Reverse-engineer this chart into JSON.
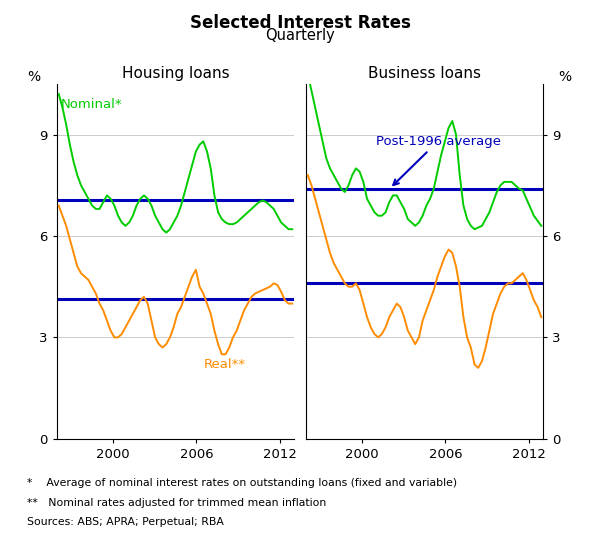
{
  "title": "Selected Interest Rates",
  "subtitle": "Quarterly",
  "left_panel_title": "Housing loans",
  "right_panel_title": "Business loans",
  "ylim": [
    0,
    10.5
  ],
  "yticks": [
    0,
    3,
    6,
    9
  ],
  "ylabel_left": "%",
  "ylabel_right": "%",
  "housing_nominal_avg": 7.05,
  "housing_real_avg": 4.15,
  "business_nominal_avg": 7.4,
  "business_real_avg": 4.6,
  "green_color": "#00CC00",
  "orange_color": "#FF8C00",
  "blue_color": "#0000BB",
  "footnote1": "*    Average of nominal interest rates on outstanding loans (fixed and variable)",
  "footnote2": "**   Nominal rates adjusted for trimmed mean inflation",
  "footnote3": "Sources: ABS; APRA; Perpetual; RBA",
  "housing_nominal": [
    10.2,
    9.8,
    9.3,
    8.7,
    8.2,
    7.8,
    7.5,
    7.3,
    7.1,
    6.9,
    6.8,
    6.8,
    7.0,
    7.2,
    7.1,
    6.9,
    6.6,
    6.4,
    6.3,
    6.4,
    6.6,
    6.9,
    7.1,
    7.2,
    7.1,
    6.9,
    6.6,
    6.4,
    6.2,
    6.1,
    6.2,
    6.4,
    6.6,
    6.9,
    7.3,
    7.7,
    8.1,
    8.5,
    8.7,
    8.8,
    8.5,
    8.0,
    7.2,
    6.7,
    6.5,
    6.4,
    6.35,
    6.35,
    6.4,
    6.5,
    6.6,
    6.7,
    6.8,
    6.9,
    7.0,
    7.05,
    7.0,
    6.9,
    6.8,
    6.6,
    6.4,
    6.3,
    6.2,
    6.2
  ],
  "housing_real": [
    6.9,
    6.6,
    6.3,
    5.9,
    5.5,
    5.1,
    4.9,
    4.8,
    4.7,
    4.5,
    4.3,
    4.0,
    3.8,
    3.5,
    3.2,
    3.0,
    3.0,
    3.1,
    3.3,
    3.5,
    3.7,
    3.9,
    4.1,
    4.2,
    4.0,
    3.5,
    3.0,
    2.8,
    2.7,
    2.8,
    3.0,
    3.3,
    3.7,
    3.9,
    4.2,
    4.5,
    4.8,
    5.0,
    4.5,
    4.3,
    4.0,
    3.7,
    3.2,
    2.8,
    2.5,
    2.5,
    2.7,
    3.0,
    3.2,
    3.5,
    3.8,
    4.0,
    4.2,
    4.3,
    4.35,
    4.4,
    4.45,
    4.5,
    4.6,
    4.55,
    4.35,
    4.1,
    4.0,
    4.0
  ],
  "business_nominal": [
    10.8,
    10.3,
    9.8,
    9.3,
    8.8,
    8.3,
    8.0,
    7.8,
    7.6,
    7.4,
    7.3,
    7.5,
    7.8,
    8.0,
    7.9,
    7.6,
    7.1,
    6.9,
    6.7,
    6.6,
    6.6,
    6.7,
    7.0,
    7.2,
    7.2,
    7.0,
    6.8,
    6.5,
    6.4,
    6.3,
    6.4,
    6.6,
    6.9,
    7.1,
    7.4,
    7.9,
    8.4,
    8.8,
    9.2,
    9.4,
    9.0,
    7.8,
    6.9,
    6.5,
    6.3,
    6.2,
    6.25,
    6.3,
    6.5,
    6.7,
    7.0,
    7.3,
    7.5,
    7.6,
    7.6,
    7.6,
    7.5,
    7.4,
    7.35,
    7.1,
    6.85,
    6.6,
    6.45,
    6.3
  ],
  "business_real": [
    7.8,
    7.5,
    7.1,
    6.7,
    6.3,
    5.9,
    5.5,
    5.2,
    5.0,
    4.8,
    4.6,
    4.5,
    4.5,
    4.6,
    4.4,
    4.0,
    3.6,
    3.3,
    3.1,
    3.0,
    3.1,
    3.3,
    3.6,
    3.8,
    4.0,
    3.9,
    3.6,
    3.2,
    3.0,
    2.8,
    3.0,
    3.5,
    3.8,
    4.1,
    4.4,
    4.8,
    5.1,
    5.4,
    5.6,
    5.5,
    5.1,
    4.5,
    3.6,
    3.0,
    2.7,
    2.2,
    2.1,
    2.3,
    2.7,
    3.2,
    3.7,
    4.0,
    4.3,
    4.5,
    4.6,
    4.6,
    4.7,
    4.8,
    4.9,
    4.7,
    4.4,
    4.1,
    3.9,
    3.6
  ]
}
